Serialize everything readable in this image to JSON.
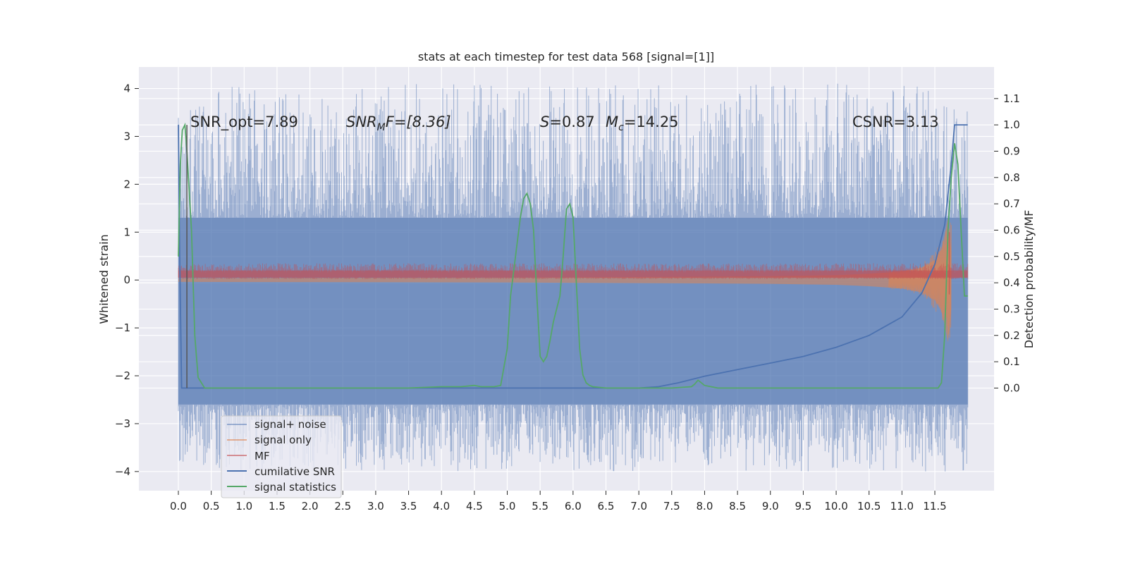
{
  "chart_data": {
    "type": "line",
    "title": "stats at each timestep for test data 568 [signal=[1]]",
    "xlabel": "",
    "ylabel": "Whitened strain",
    "ylabel_right": "Detection probability/MF",
    "xlim": [
      -0.6,
      12.4
    ],
    "ylim": [
      -4.4,
      4.45
    ],
    "ylim_right": [
      -0.39,
      1.22
    ],
    "x_ticks": [
      "0.0",
      "0.5",
      "1.0",
      "1.5",
      "2.0",
      "2.5",
      "3.0",
      "3.5",
      "4.0",
      "4.5",
      "5.0",
      "5.5",
      "6.0",
      "6.5",
      "7.0",
      "7.5",
      "8.0",
      "8.5",
      "9.0",
      "9.5",
      "10.0",
      "10.5",
      "11.0",
      "11.5"
    ],
    "y_ticks": [
      "4",
      "3",
      "2",
      "1",
      "0",
      "−1",
      "−2",
      "−3",
      "−4"
    ],
    "y_ticks_right": [
      "1.1",
      "1.0",
      "0.9",
      "0.8",
      "0.7",
      "0.6",
      "0.5",
      "0.4",
      "0.3",
      "0.2",
      "0.1",
      "0.0"
    ],
    "grid": true,
    "legend_position": "lower-left",
    "annotations": {
      "snr_opt": "SNR_opt=7.89",
      "snr_mf_a": "SNR",
      "snr_mf_b": "M",
      "snr_mf_c": "F=[8.36]",
      "s_a": "S",
      "s_b": "=0.87",
      "mc_a": "M",
      "mc_b": "c",
      "mc_c": "=14.25",
      "csnr": "CSNR=3.13"
    },
    "series": [
      {
        "name": "signal+ noise",
        "color": "#4c72b0",
        "axis": "left",
        "style": "noise band",
        "t_range": [
          0.0,
          12.0
        ],
        "envelope_upper": 1.3,
        "envelope_lower": -2.6,
        "spike_max": 4.1,
        "spike_min": -4.0
      },
      {
        "name": "signal only",
        "color": "#dd8452",
        "axis": "left",
        "style": "chirp",
        "x": [
          0,
          5,
          8,
          9,
          10,
          10.5,
          11,
          11.3,
          11.5,
          11.6,
          11.65,
          11.7,
          11.75
        ],
        "amplitude": [
          0.04,
          0.05,
          0.07,
          0.08,
          0.1,
          0.13,
          0.18,
          0.26,
          0.42,
          0.65,
          0.95,
          1.3,
          0.6
        ]
      },
      {
        "name": "MF",
        "color": "#c44e52",
        "axis": "left",
        "style": "noise band",
        "t_range": [
          0.0,
          12.0
        ],
        "envelope_upper": 0.25,
        "envelope_lower": 0.02
      },
      {
        "name": "cumilative SNR",
        "color": "#4c72b0",
        "axis": "right",
        "x": [
          0.0,
          0.02,
          0.05,
          0.13,
          0.14,
          1,
          3,
          5,
          6,
          7,
          7.3,
          7.6,
          8,
          8.5,
          9,
          9.5,
          10,
          10.5,
          11,
          11.3,
          11.5,
          11.65,
          11.75,
          11.8,
          12.0
        ],
        "values": [
          1.0,
          0.5,
          0.0,
          0.0,
          0.0,
          0.0,
          0.0,
          0.0,
          0.0,
          0.0,
          0.005,
          0.02,
          0.045,
          0.07,
          0.095,
          0.12,
          0.155,
          0.2,
          0.27,
          0.36,
          0.47,
          0.62,
          0.85,
          1.0,
          1.0
        ]
      },
      {
        "name": "signal statistics",
        "color": "#55a868",
        "axis": "right",
        "x": [
          0.0,
          0.03,
          0.06,
          0.1,
          0.13,
          0.2,
          0.25,
          0.3,
          0.4,
          1,
          2,
          3,
          3.5,
          4,
          4.3,
          4.5,
          4.6,
          4.8,
          4.9,
          5.0,
          5.05,
          5.1,
          5.15,
          5.2,
          5.25,
          5.3,
          5.35,
          5.4,
          5.45,
          5.5,
          5.55,
          5.6,
          5.65,
          5.7,
          5.8,
          5.85,
          5.9,
          5.95,
          6.0,
          6.05,
          6.1,
          6.15,
          6.2,
          6.25,
          6.3,
          6.5,
          7,
          7.5,
          7.8,
          7.85,
          7.9,
          8.0,
          8.2,
          8.5,
          9,
          9.5,
          10,
          10.5,
          11,
          11.55,
          11.6,
          11.65,
          11.7,
          11.75,
          11.8,
          11.85,
          11.9,
          11.95,
          12.0
        ],
        "values": [
          0.5,
          0.85,
          0.98,
          1.0,
          0.9,
          0.6,
          0.2,
          0.04,
          0.0,
          0.0,
          0.0,
          0.0,
          0.0,
          0.005,
          0.005,
          0.01,
          0.005,
          0.005,
          0.01,
          0.15,
          0.35,
          0.45,
          0.55,
          0.65,
          0.72,
          0.74,
          0.7,
          0.6,
          0.35,
          0.12,
          0.1,
          0.12,
          0.18,
          0.25,
          0.35,
          0.5,
          0.68,
          0.7,
          0.65,
          0.4,
          0.15,
          0.05,
          0.02,
          0.01,
          0.005,
          0.0,
          0.0,
          0.0,
          0.005,
          0.015,
          0.03,
          0.01,
          0.0,
          0.0,
          0.0,
          0.0,
          0.0,
          0.0,
          0.0,
          0.0,
          0.02,
          0.2,
          0.6,
          0.8,
          0.93,
          0.85,
          0.6,
          0.35,
          0.35
        ]
      },
      {
        "name": "",
        "color": "#555555",
        "axis": "right",
        "x": [
          0.13,
          0.13
        ],
        "values": [
          0.0,
          1.0
        ]
      }
    ]
  }
}
